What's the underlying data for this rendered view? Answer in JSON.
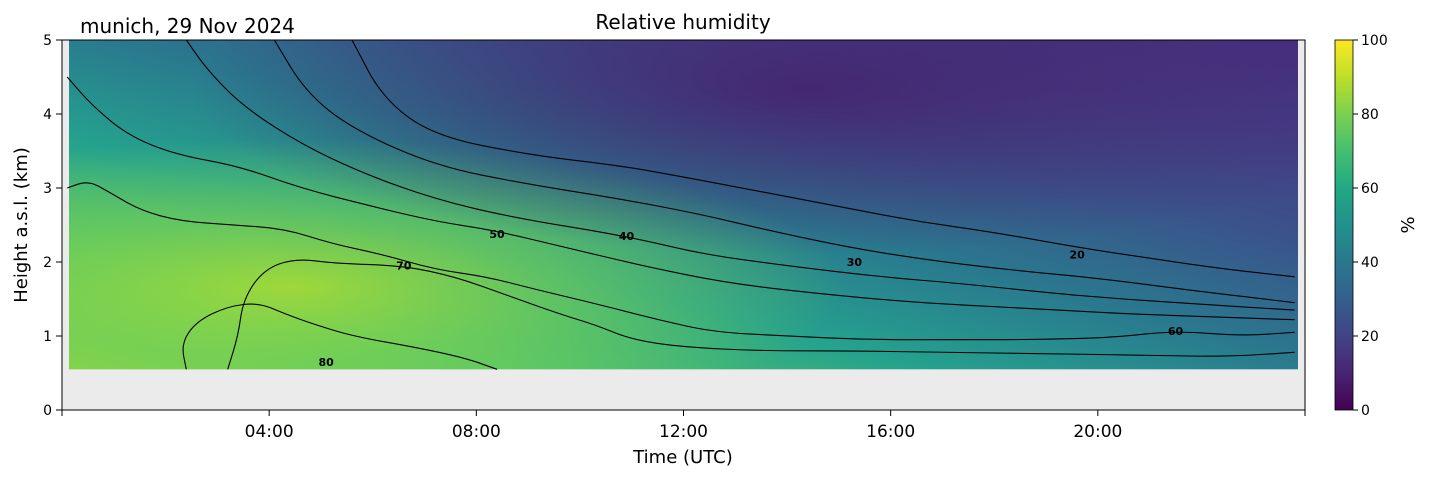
{
  "chart_data": {
    "type": "heatmap",
    "title": "Relative humidity",
    "subtitle": "munich, 29 Nov 2024",
    "xlabel": "Time (UTC)",
    "ylabel": "Height a.s.l. (km)",
    "colorbar_label": "%",
    "xlim_hours": [
      0,
      24
    ],
    "ylim": [
      0,
      5
    ],
    "clim": [
      0,
      100
    ],
    "colormap": "viridis",
    "missing_below_km": 0.55,
    "missing_color": "#ebebeb",
    "x_tick_labels": [
      "04:00",
      "08:00",
      "12:00",
      "16:00",
      "20:00"
    ],
    "x_ticks_hours": [
      4,
      8,
      12,
      16,
      20
    ],
    "y_ticks": [
      0,
      1,
      2,
      3,
      4,
      5
    ],
    "colorbar_ticks": [
      0,
      20,
      40,
      60,
      80,
      100
    ],
    "contours": [
      {
        "level": 20,
        "label": "20",
        "label_at": [
          19.6,
          2.1
        ],
        "points": [
          [
            5.6,
            5
          ],
          [
            6.2,
            4.2
          ],
          [
            7.2,
            3.7
          ],
          [
            9,
            3.45
          ],
          [
            10.8,
            3.3
          ],
          [
            12,
            3.15
          ],
          [
            13.5,
            2.95
          ],
          [
            15,
            2.75
          ],
          [
            16.5,
            2.55
          ],
          [
            18,
            2.4
          ],
          [
            19.6,
            2.2
          ],
          [
            21,
            2.05
          ],
          [
            22.5,
            1.9
          ],
          [
            23.8,
            1.8
          ]
        ]
      },
      {
        "level": 30,
        "label": "30",
        "label_at": [
          15.3,
          2.0
        ],
        "points": [
          [
            4.1,
            5
          ],
          [
            4.7,
            4.3
          ],
          [
            5.6,
            3.8
          ],
          [
            7.2,
            3.3
          ],
          [
            9,
            3.05
          ],
          [
            10.8,
            2.85
          ],
          [
            12.3,
            2.65
          ],
          [
            13.5,
            2.45
          ],
          [
            15.3,
            2.18
          ],
          [
            17,
            2.0
          ],
          [
            18.5,
            1.88
          ],
          [
            20,
            1.78
          ],
          [
            22,
            1.6
          ],
          [
            23.8,
            1.45
          ]
        ]
      },
      {
        "level": 40,
        "label": "40",
        "label_at": [
          10.9,
          2.35
        ],
        "points": [
          [
            2.4,
            5
          ],
          [
            2.8,
            4.6
          ],
          [
            3.5,
            4.1
          ],
          [
            4.6,
            3.6
          ],
          [
            5.8,
            3.2
          ],
          [
            7.2,
            2.85
          ],
          [
            8.7,
            2.6
          ],
          [
            10.9,
            2.35
          ],
          [
            12.4,
            2.1
          ],
          [
            14,
            1.95
          ],
          [
            15.8,
            1.8
          ],
          [
            17.5,
            1.7
          ],
          [
            19.5,
            1.55
          ],
          [
            21.5,
            1.45
          ],
          [
            23.8,
            1.35
          ]
        ]
      },
      {
        "level": 50,
        "label": "50",
        "label_at": [
          8.4,
          2.38
        ],
        "points": [
          [
            0.1,
            4.5
          ],
          [
            0.6,
            4.1
          ],
          [
            1.3,
            3.7
          ],
          [
            2.2,
            3.45
          ],
          [
            3.4,
            3.3
          ],
          [
            4.6,
            3.0
          ],
          [
            6.0,
            2.75
          ],
          [
            7.2,
            2.55
          ],
          [
            8.4,
            2.42
          ],
          [
            9.7,
            2.2
          ],
          [
            11.2,
            1.95
          ],
          [
            12.8,
            1.72
          ],
          [
            14.5,
            1.58
          ],
          [
            16.5,
            1.45
          ],
          [
            18.5,
            1.38
          ],
          [
            20.5,
            1.3
          ],
          [
            22.5,
            1.25
          ],
          [
            23.8,
            1.22
          ]
        ]
      },
      {
        "level": 60,
        "label": "60",
        "label_at": [
          21.5,
          1.07
        ],
        "points": [
          [
            0.1,
            3.0
          ],
          [
            0.5,
            3.1
          ],
          [
            0.9,
            2.95
          ],
          [
            1.5,
            2.7
          ],
          [
            2.3,
            2.55
          ],
          [
            3.3,
            2.5
          ],
          [
            4.3,
            2.45
          ],
          [
            5.2,
            2.25
          ],
          [
            6.2,
            2.1
          ],
          [
            7.2,
            1.9
          ],
          [
            8.2,
            1.8
          ],
          [
            9.2,
            1.62
          ],
          [
            10.4,
            1.42
          ],
          [
            11.5,
            1.22
          ],
          [
            12.6,
            1.05
          ],
          [
            14,
            1.0
          ],
          [
            15.6,
            0.95
          ],
          [
            17.2,
            0.95
          ],
          [
            18.8,
            0.95
          ],
          [
            20.3,
            0.98
          ],
          [
            21.5,
            1.07
          ],
          [
            22.8,
            1.0
          ],
          [
            23.8,
            1.05
          ]
        ]
      },
      {
        "level": 70,
        "label": "70",
        "label_at": [
          6.6,
          1.95
        ],
        "points": [
          [
            3.2,
            0.55
          ],
          [
            3.4,
            1.0
          ],
          [
            3.5,
            1.5
          ],
          [
            3.9,
            1.9
          ],
          [
            4.5,
            2.05
          ],
          [
            5.3,
            1.98
          ],
          [
            6.6,
            1.95
          ],
          [
            7.6,
            1.8
          ],
          [
            8.6,
            1.55
          ],
          [
            9.6,
            1.3
          ],
          [
            10.3,
            1.15
          ],
          [
            11.0,
            0.95
          ],
          [
            12.0,
            0.85
          ],
          [
            13.5,
            0.8
          ],
          [
            15,
            0.8
          ],
          [
            17,
            0.78
          ],
          [
            19,
            0.76
          ],
          [
            21,
            0.74
          ],
          [
            22.5,
            0.72
          ],
          [
            23.8,
            0.78
          ]
        ]
      },
      {
        "level": 80,
        "label": "80",
        "label_at": [
          5.1,
          0.65
        ],
        "points": [
          [
            2.4,
            0.55
          ],
          [
            2.3,
            0.9
          ],
          [
            2.6,
            1.2
          ],
          [
            3.2,
            1.4
          ],
          [
            3.8,
            1.45
          ],
          [
            4.3,
            1.3
          ],
          [
            4.9,
            1.15
          ],
          [
            5.6,
            1.0
          ],
          [
            6.8,
            0.85
          ],
          [
            7.8,
            0.7
          ],
          [
            8.4,
            0.55
          ]
        ]
      }
    ]
  }
}
